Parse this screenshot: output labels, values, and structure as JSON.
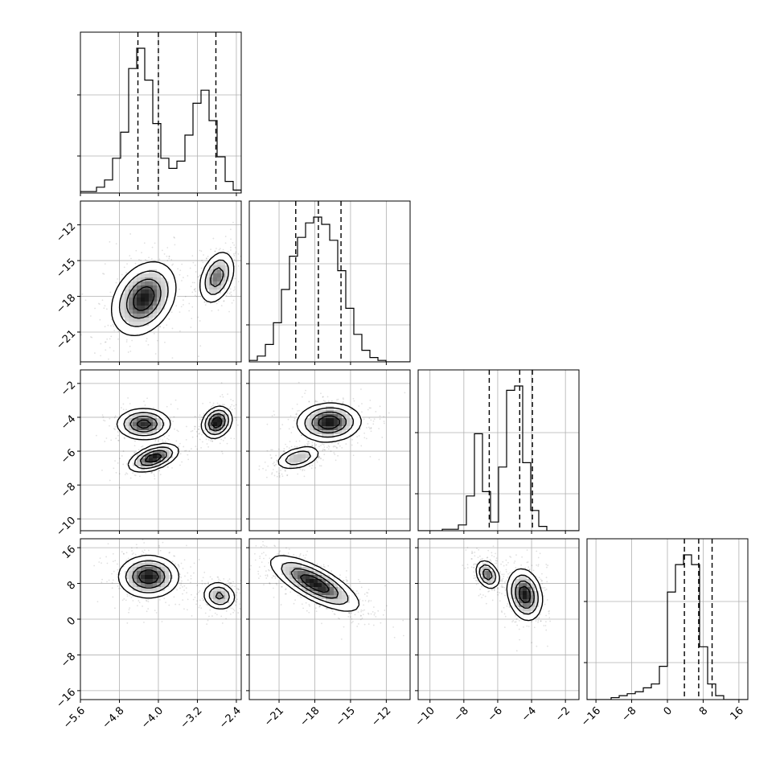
{
  "chart_data": {
    "type": "corner",
    "parameters": [
      {
        "range": [
          -5.6,
          -2.3
        ],
        "ticks": [
          -5.6,
          -4.8,
          -4.0,
          -3.2,
          -2.4
        ],
        "tick_labels": [
          "−5.6",
          "−4.8",
          "−4.0",
          "−3.2",
          "−2.4"
        ],
        "histogram": {
          "edges_start": -5.6,
          "bin_width": 0.165,
          "counts": [
            0.01,
            0.01,
            0.04,
            0.09,
            0.24,
            0.42,
            0.86,
            1.0,
            0.78,
            0.48,
            0.24,
            0.17,
            0.22,
            0.4,
            0.62,
            0.71,
            0.5,
            0.25,
            0.08,
            0.02
          ]
        },
        "quantiles": [
          -4.42,
          -4.0,
          -2.82
        ]
      },
      {
        "range": [
          -23.5,
          -10.0
        ],
        "ticks": [
          -21,
          -18,
          -15,
          -12
        ],
        "tick_labels": [
          "−21",
          "−18",
          "−15",
          "−12"
        ],
        "histogram": {
          "edges_start": -23.5,
          "bin_width": 0.675,
          "counts": [
            0.01,
            0.04,
            0.12,
            0.27,
            0.5,
            0.73,
            0.86,
            0.96,
            1.0,
            0.95,
            0.84,
            0.63,
            0.37,
            0.19,
            0.08,
            0.03,
            0.01,
            0.0,
            0.0,
            0.0
          ]
        },
        "quantiles": [
          -19.6,
          -17.7,
          -15.8
        ]
      },
      {
        "range": [
          -10.7,
          -1.2
        ],
        "ticks": [
          -10,
          -8,
          -6,
          -4,
          -2
        ],
        "tick_labels": [
          "−10",
          "−8",
          "−6",
          "−4",
          "−2"
        ],
        "histogram": {
          "edges_start": -10.7,
          "bin_width": 0.475,
          "counts": [
            0.0,
            0.0,
            0.0,
            0.01,
            0.01,
            0.04,
            0.24,
            0.67,
            0.27,
            0.06,
            0.44,
            0.97,
            1.0,
            0.47,
            0.14,
            0.03,
            0.0,
            0.0,
            0.0,
            0.0
          ]
        },
        "quantiles": [
          -6.5,
          -4.7,
          -3.95
        ]
      },
      {
        "range": [
          -18.0,
          18.0
        ],
        "ticks": [
          -16,
          -8,
          0,
          8,
          16
        ],
        "tick_labels": [
          "−16",
          "−8",
          "0",
          "8",
          "16"
        ],
        "histogram": {
          "edges_start": -18.0,
          "bin_width": 1.8,
          "counts": [
            0.0,
            0.0,
            0.0,
            0.01,
            0.02,
            0.03,
            0.04,
            0.06,
            0.08,
            0.17,
            0.55,
            0.69,
            0.74,
            0.69,
            0.27,
            0.08,
            0.02,
            0.0,
            0.0,
            0.0
          ]
        },
        "quantiles": [
          3.8,
          7.0,
          10.0
        ]
      }
    ],
    "pair_blobs": {
      "1-0": [
        {
          "center": [
            -4.3,
            -18.2
          ],
          "sigma": [
            0.32,
            1.5
          ],
          "rho": 0.3,
          "weight": 1.0
        },
        {
          "center": [
            -2.8,
            -16.4
          ],
          "sigma": [
            0.18,
            1.1
          ],
          "rho": 0.35,
          "weight": 0.72
        }
      ],
      "2-0": [
        {
          "center": [
            -4.3,
            -4.4
          ],
          "sigma": [
            0.27,
            0.45
          ],
          "rho": 0.0,
          "weight": 0.55
        },
        {
          "center": [
            -4.1,
            -6.4
          ],
          "sigma": [
            0.25,
            0.4
          ],
          "rho": 0.5,
          "weight": 0.6
        },
        {
          "center": [
            -2.8,
            -4.3
          ],
          "sigma": [
            0.15,
            0.45
          ],
          "rho": 0.2,
          "weight": 0.62
        }
      ],
      "2-1": [
        {
          "center": [
            -16.8,
            -4.3
          ],
          "sigma": [
            1.3,
            0.55
          ],
          "rho": 0.05,
          "weight": 1.0
        },
        {
          "center": [
            -19.4,
            -6.4
          ],
          "sigma": [
            0.95,
            0.35
          ],
          "rho": 0.4,
          "weight": 0.55
        }
      ],
      "3-0": [
        {
          "center": [
            -4.2,
            9.5
          ],
          "sigma": [
            0.3,
            2.3
          ],
          "rho": 0.0,
          "weight": 1.0
        },
        {
          "center": [
            -2.75,
            5.2
          ],
          "sigma": [
            0.17,
            1.6
          ],
          "rho": -0.1,
          "weight": 0.62
        }
      ],
      "3-1": [
        {
          "center": [
            -18.0,
            8.0
          ],
          "sigma": [
            1.8,
            3.0
          ],
          "rho": -0.75,
          "weight": 1.0
        }
      ],
      "3-2": [
        {
          "center": [
            -6.6,
            10.0
          ],
          "sigma": [
            0.35,
            1.6
          ],
          "rho": -0.3,
          "weight": 0.75
        },
        {
          "center": [
            -4.4,
            5.5
          ],
          "sigma": [
            0.5,
            2.8
          ],
          "rho": -0.2,
          "weight": 1.0
        }
      ]
    },
    "contour_levels": [
      0.12,
      0.3,
      0.55,
      0.8
    ],
    "grid": true,
    "scatter_points_per_panel": 700
  }
}
